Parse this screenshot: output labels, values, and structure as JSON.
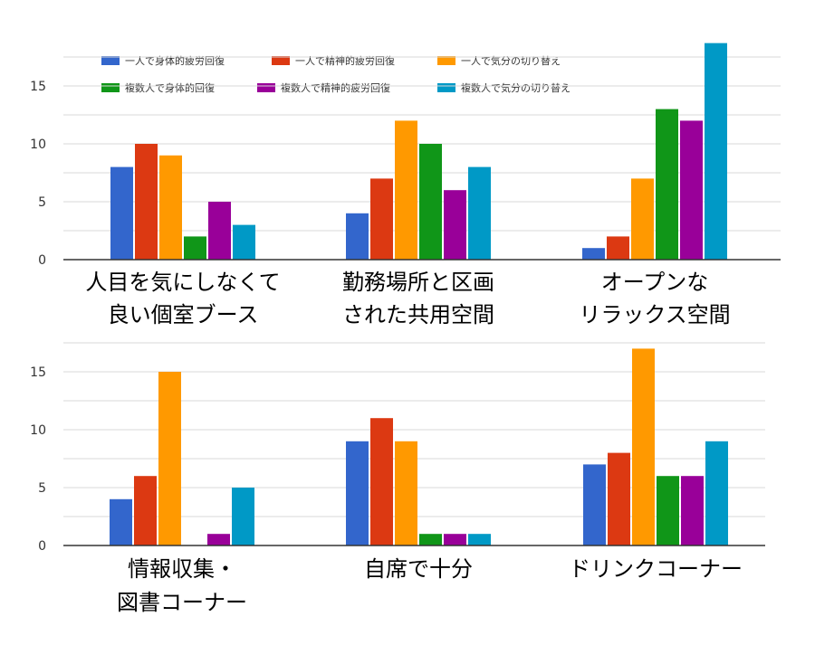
{
  "chart_data": {
    "type": "bar",
    "grid": true,
    "legend_position": "top",
    "yticks": [
      0,
      5,
      10,
      15
    ],
    "ylim": [
      0,
      18.5
    ],
    "series": [
      {
        "name": "一人で身体的疲労回復",
        "color": "#3366cc"
      },
      {
        "name": "一人で精神的疲労回復",
        "color": "#dc3912"
      },
      {
        "name": "一人で気分の切り替え",
        "color": "#ff9900"
      },
      {
        "name": "複数人で身体的回復",
        "color": "#109618"
      },
      {
        "name": "複数人で精神的疲労回復",
        "color": "#990099"
      },
      {
        "name": "複数人で気分の切り替え",
        "color": "#0099c6"
      }
    ],
    "panels": [
      {
        "categories": [
          {
            "lines": [
              "人目を気にしなくて",
              "良い個室ブース"
            ],
            "values": [
              8,
              10,
              9,
              2,
              5,
              3
            ]
          },
          {
            "lines": [
              "勤務場所と区画",
              "された共用空間"
            ],
            "values": [
              4,
              7,
              12,
              10,
              6,
              8
            ]
          },
          {
            "lines": [
              "オープンな",
              "リラックス空間"
            ],
            "values": [
              1,
              2,
              7,
              13,
              12,
              18.7
            ]
          }
        ]
      },
      {
        "categories": [
          {
            "lines": [
              "情報収集・",
              "図書コーナー"
            ],
            "values": [
              4,
              6,
              15,
              0,
              1,
              5
            ]
          },
          {
            "lines": [
              "自席で十分"
            ],
            "values": [
              9,
              11,
              9,
              1,
              1,
              1
            ]
          },
          {
            "lines": [
              "ドリンクコーナー"
            ],
            "values": [
              7,
              8,
              17,
              6,
              6,
              9
            ]
          }
        ]
      }
    ]
  }
}
